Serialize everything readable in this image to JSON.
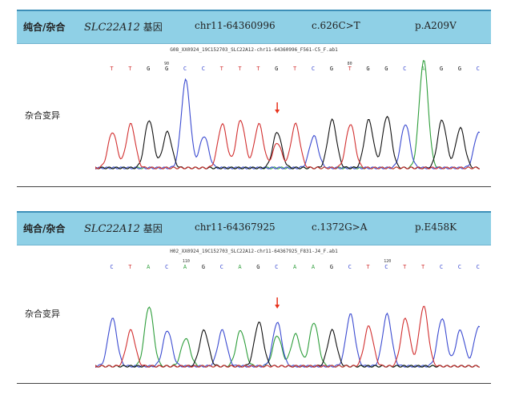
{
  "panels": [
    {
      "zygosity_header": "纯合/杂合",
      "gene_name": "SLC22A12",
      "gene_suffix": "基因",
      "position": "chr11-64360996",
      "cdna_change": "c.626C>T",
      "protein_change": "p.A209V",
      "file_name": "G08_XX0924_19C152703_SLC22A12-chr11-64360996_F561-C5_F.ab1",
      "result_label": "杂合变异",
      "base_calls": [
        "T",
        "T",
        "G",
        "G",
        "C",
        "C",
        "T",
        "T",
        "T",
        "G",
        "T",
        "C",
        "G",
        "T",
        "G",
        "G",
        "C",
        "A",
        "G",
        "G",
        "C"
      ],
      "position_markers": [
        "90",
        "80"
      ],
      "arrow_color": "#e8321c",
      "trace_colors": {
        "A": "#2e9e3b",
        "C": "#3b4bd1",
        "G": "#111111",
        "T": "#d23030"
      }
    },
    {
      "zygosity_header": "纯合/杂合",
      "gene_name": "SLC22A12",
      "gene_suffix": "基因",
      "position": "chr11-64367925",
      "cdna_change": "c.1372G>A",
      "protein_change": "p.E458K",
      "file_name": "H02_XX0924_19C152703_SLC22A12-chr11-64367925_F831-J4_F.ab1",
      "result_label": "杂合变异",
      "base_calls": [
        "C",
        "T",
        "A",
        "C",
        "A",
        "G",
        "C",
        "A",
        "G",
        "C",
        "A",
        "A",
        "G",
        "C",
        "T",
        "C",
        "T",
        "T",
        "C",
        "C",
        "C"
      ],
      "position_markers": [
        "110",
        "120"
      ],
      "arrow_color": "#e8321c",
      "trace_colors": {
        "A": "#2e9e3b",
        "C": "#3b4bd1",
        "G": "#111111",
        "T": "#d23030"
      }
    }
  ]
}
